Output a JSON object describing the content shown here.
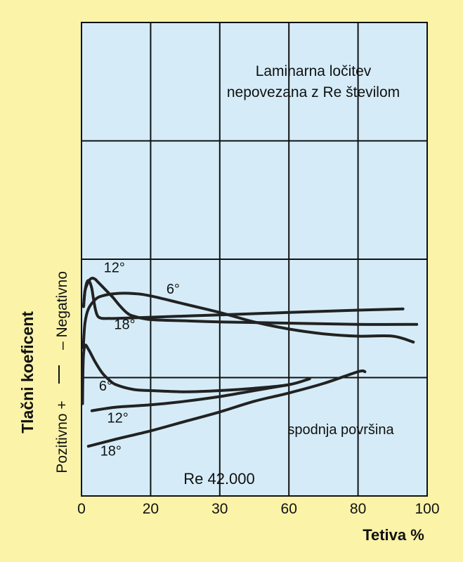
{
  "chart_data": {
    "type": "line",
    "title": "Laminarna ločitev nepovezana z Re številom",
    "title_lines": [
      "Laminarna ločitev",
      "nepovezana z Re številom"
    ],
    "xlabel": "Tetiva %",
    "ylabel": "Tlačni koeficent",
    "ylabel_negative": "– Negativno",
    "ylabel_positive": "Pozitivno +",
    "xlim": [
      0,
      100
    ],
    "ylim": [
      -1,
      3
    ],
    "x_ticks": [
      0,
      20,
      30,
      60,
      80,
      100
    ],
    "x_tick_labels": [
      "0",
      "20",
      "30",
      "60",
      "80",
      "100"
    ],
    "grid": true,
    "annotations": {
      "lower_surface": "spodnja površina",
      "reynolds": "Re 42.000"
    },
    "series": [
      {
        "name": "12°",
        "surface": "upper",
        "x": [
          0.6,
          1,
          2,
          3,
          4,
          5,
          7,
          9,
          11,
          13,
          15,
          20,
          30,
          40,
          60,
          80,
          97
        ],
        "y": [
          0.6,
          0.73,
          0.81,
          0.84,
          0.83,
          0.8,
          0.74,
          0.68,
          0.61,
          0.55,
          0.52,
          0.49,
          0.48,
          0.47,
          0.46,
          0.45,
          0.45
        ]
      },
      {
        "name": "18°",
        "surface": "upper",
        "x": [
          0.6,
          1,
          1.5,
          2,
          2.5,
          3,
          3.5,
          4,
          4.5,
          5,
          6,
          8,
          10,
          20,
          40,
          60,
          80,
          93
        ],
        "y": [
          0.6,
          0.73,
          0.8,
          0.82,
          0.8,
          0.75,
          0.66,
          0.58,
          0.53,
          0.51,
          0.5,
          0.5,
          0.5,
          0.51,
          0.53,
          0.55,
          0.57,
          0.58
        ]
      },
      {
        "name": "6°",
        "surface": "upper",
        "x": [
          0.5,
          1,
          2,
          4,
          6,
          10,
          15,
          20,
          30,
          40,
          50,
          60,
          70,
          80,
          90,
          96
        ],
        "y": [
          0.25,
          0.46,
          0.58,
          0.66,
          0.69,
          0.71,
          0.71,
          0.69,
          0.62,
          0.55,
          0.47,
          0.41,
          0.37,
          0.35,
          0.35,
          0.3
        ]
      },
      {
        "name": "6°",
        "surface": "lower",
        "x": [
          0.3,
          0.5,
          1,
          2,
          4,
          6,
          8,
          10,
          15,
          20,
          30,
          40,
          50,
          60,
          66
        ],
        "y": [
          -0.22,
          0.15,
          0.27,
          0.24,
          0.13,
          0.04,
          -0.02,
          -0.06,
          -0.1,
          -0.11,
          -0.12,
          -0.11,
          -0.09,
          -0.06,
          -0.01
        ]
      },
      {
        "name": "12°",
        "surface": "lower",
        "x": [
          3,
          10,
          20,
          30,
          40,
          50,
          60
        ],
        "y": [
          -0.28,
          -0.25,
          -0.23,
          -0.2,
          -0.16,
          -0.11,
          -0.06
        ]
      },
      {
        "name": "18°",
        "surface": "lower",
        "x": [
          2,
          10,
          20,
          30,
          40,
          50,
          60,
          70,
          80,
          82
        ],
        "y": [
          -0.58,
          -0.52,
          -0.45,
          -0.37,
          -0.29,
          -0.2,
          -0.13,
          -0.05,
          0.05,
          0.05
        ]
      }
    ],
    "curve_labels": [
      {
        "text": "12°",
        "x": 9.5,
        "y": 0.89
      },
      {
        "text": "6°",
        "x": 26.5,
        "y": 0.71
      },
      {
        "text": "18°",
        "x": 12.5,
        "y": 0.41
      },
      {
        "text": "6°",
        "x": 7,
        "y": -0.11
      },
      {
        "text": "12°",
        "x": 10.5,
        "y": -0.38
      },
      {
        "text": "18°",
        "x": 8.5,
        "y": -0.66
      }
    ]
  }
}
